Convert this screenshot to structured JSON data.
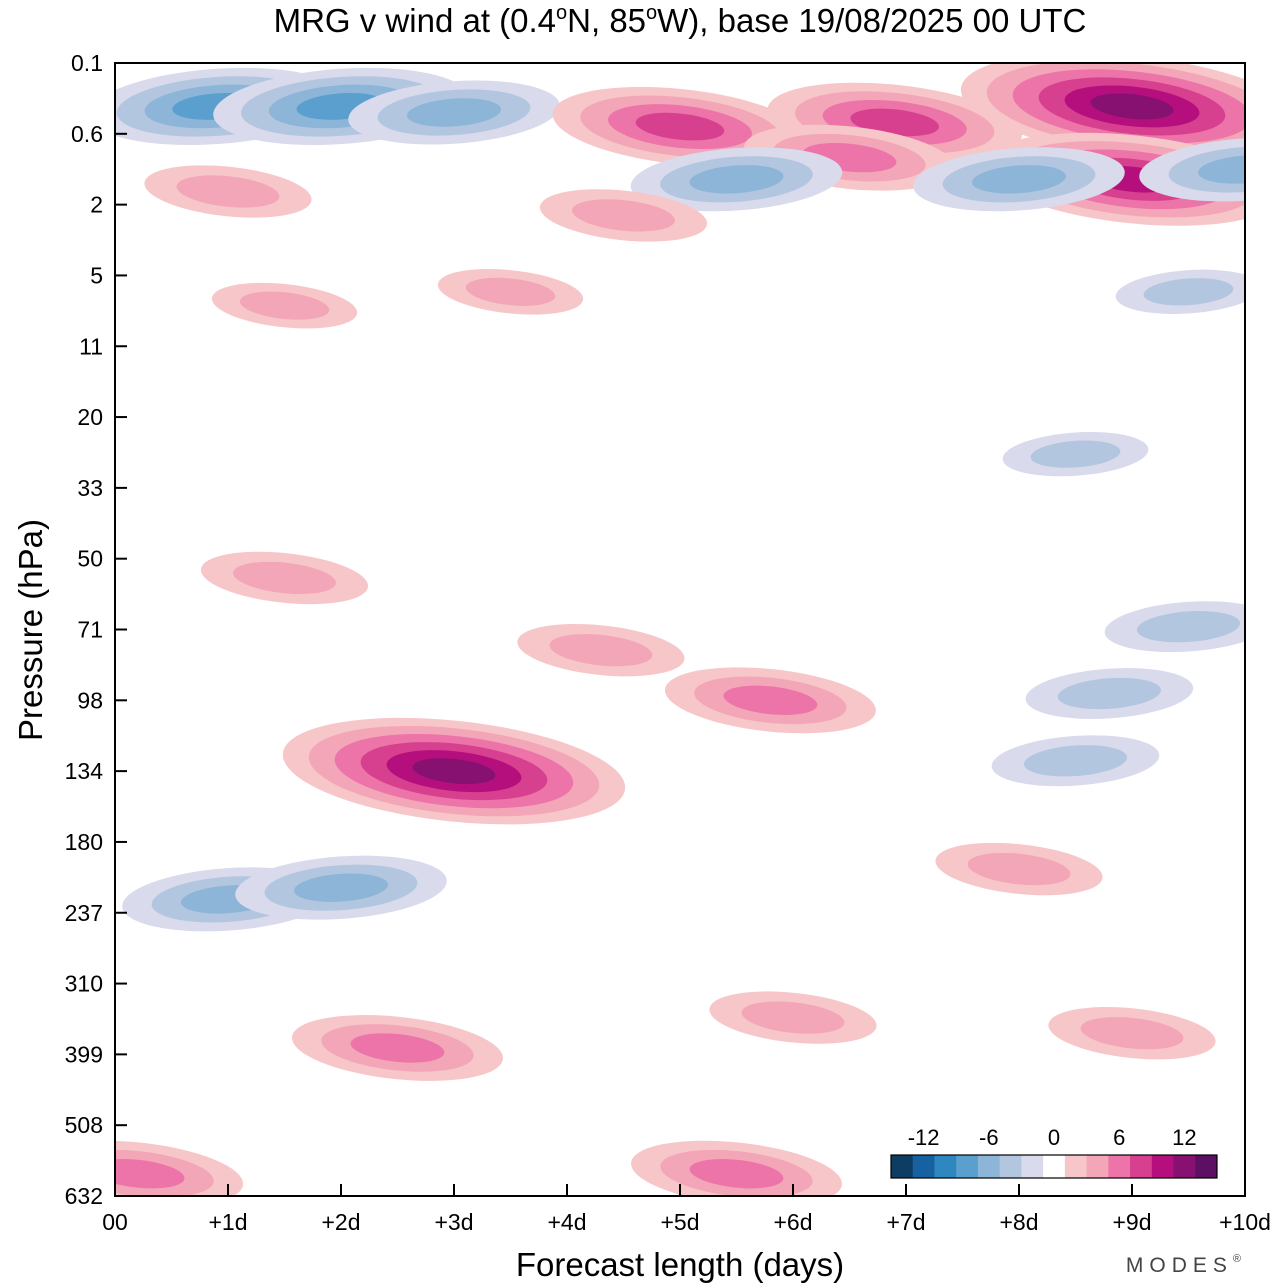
{
  "chart_data": {
    "type": "heatmap",
    "title": "MRG v wind at (0.4ᵒN, 85ᵒW),  base 19/08/2025  00 UTC",
    "title_parts": {
      "prefix": "MRG v wind at (0.4",
      "deg1": "o",
      "mid": "N, 85",
      "deg2": "o",
      "suffix": "W),  base 19/08/2025  00 UTC"
    },
    "xlabel": "Forecast length (days)",
    "ylabel": "Pressure (hPa)",
    "x_ticks": [
      "00",
      "+1d",
      "+2d",
      "+3d",
      "+4d",
      "+5d",
      "+6d",
      "+7d",
      "+8d",
      "+9d",
      "+10d"
    ],
    "y_ticks": [
      "0.1",
      "0.6",
      "2",
      "5",
      "11",
      "20",
      "33",
      "50",
      "71",
      "98",
      "134",
      "180",
      "237",
      "310",
      "399",
      "508",
      "632"
    ],
    "xlim_days": [
      0,
      10
    ],
    "ylim_hpa": [
      0.1,
      632
    ],
    "colorbar": {
      "tick_labels": [
        "-12",
        "-6",
        "0",
        "6",
        "12"
      ],
      "tick_values": [
        -12,
        -6,
        0,
        6,
        12
      ],
      "levels": [
        -14,
        -12,
        -10,
        -8,
        -6,
        -4,
        -2,
        0,
        2,
        4,
        6,
        8,
        10,
        12,
        14
      ],
      "colors": [
        "#0d3d63",
        "#1662a0",
        "#2f87c0",
        "#5b9fcf",
        "#8db5d8",
        "#b3c6e0",
        "#d9daeb",
        "#ffffff",
        "#f7c6c9",
        "#f3a6b8",
        "#ec74a8",
        "#d7408f",
        "#b50f7d",
        "#861170",
        "#5c0f63"
      ]
    },
    "features": [
      {
        "day": 0.9,
        "hpa": 0.3,
        "value": -8
      },
      {
        "day": 2.0,
        "hpa": 0.3,
        "value": -8
      },
      {
        "day": 3.0,
        "hpa": 0.35,
        "value": -6
      },
      {
        "day": 5.0,
        "hpa": 0.5,
        "value": 8
      },
      {
        "day": 6.9,
        "hpa": 0.45,
        "value": 8
      },
      {
        "day": 6.5,
        "hpa": 0.9,
        "value": 6
      },
      {
        "day": 9.0,
        "hpa": 0.3,
        "value": 12
      },
      {
        "day": 9.0,
        "hpa": 1.3,
        "value": 10
      },
      {
        "day": 8.0,
        "hpa": 1.3,
        "value": -6
      },
      {
        "day": 5.5,
        "hpa": 1.3,
        "value": -6
      },
      {
        "day": 10.0,
        "hpa": 1.1,
        "value": -6
      },
      {
        "day": 1.0,
        "hpa": 1.6,
        "value": 4
      },
      {
        "day": 4.5,
        "hpa": 2.3,
        "value": 4
      },
      {
        "day": 3.0,
        "hpa": 134,
        "value": 12
      },
      {
        "day": 5.8,
        "hpa": 98,
        "value": 6
      },
      {
        "day": 1.5,
        "hpa": 55,
        "value": 4
      },
      {
        "day": 4.3,
        "hpa": 78,
        "value": 4
      },
      {
        "day": 1.0,
        "hpa": 225,
        "value": -6
      },
      {
        "day": 2.0,
        "hpa": 215,
        "value": -6
      },
      {
        "day": 8.5,
        "hpa": 128,
        "value": -4
      },
      {
        "day": 8.8,
        "hpa": 95,
        "value": -4
      },
      {
        "day": 9.5,
        "hpa": 70,
        "value": -4
      },
      {
        "day": 8.0,
        "hpa": 200,
        "value": 4
      },
      {
        "day": 2.5,
        "hpa": 390,
        "value": 6
      },
      {
        "day": 5.5,
        "hpa": 590,
        "value": 6
      },
      {
        "day": 0.2,
        "hpa": 590,
        "value": 6
      },
      {
        "day": 9.0,
        "hpa": 370,
        "value": 4
      },
      {
        "day": 6.0,
        "hpa": 350,
        "value": 4
      },
      {
        "day": 1.5,
        "hpa": 7,
        "value": 3
      },
      {
        "day": 3.5,
        "hpa": 6,
        "value": 3
      },
      {
        "day": 9.5,
        "hpa": 6,
        "value": -3
      },
      {
        "day": 8.5,
        "hpa": 26,
        "value": -3
      }
    ]
  },
  "watermark": "MODES",
  "watermark_mark": "®"
}
